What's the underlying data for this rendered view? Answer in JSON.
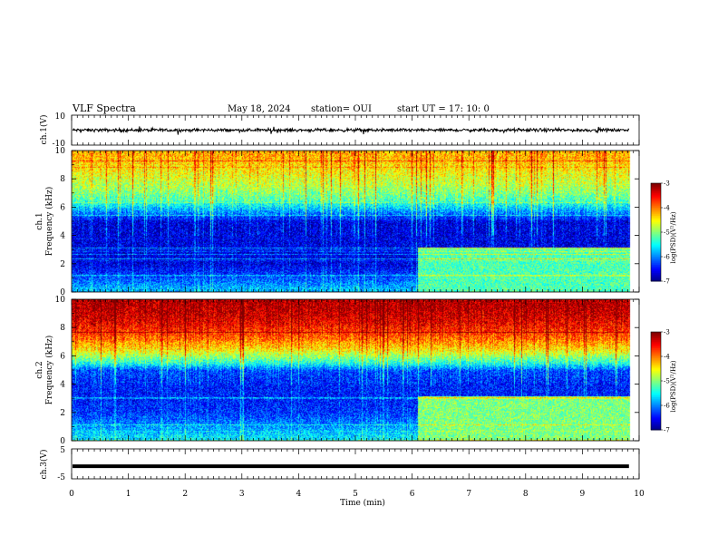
{
  "header": {
    "title": "VLF Spectra",
    "date": "May 18, 2024",
    "station": "station= OUI",
    "start": "start  UT  =   17: 10: 0"
  },
  "panels": {
    "ch1v": {
      "ylabel": "ch.1(V)",
      "yticks": [
        "10",
        "-10"
      ]
    },
    "spec1": {
      "ylabel": "ch.1\nFrequency (kHz)",
      "yticks": [
        "0",
        "2",
        "4",
        "6",
        "8",
        "10"
      ]
    },
    "spec2": {
      "ylabel": "ch.2\nFrequency (kHz)",
      "yticks": [
        "0",
        "2",
        "4",
        "6",
        "8",
        "10"
      ]
    },
    "ch3v": {
      "ylabel": "ch.3(V)",
      "yticks": [
        "5",
        "-5"
      ]
    }
  },
  "xaxis": {
    "label": "Time (min)",
    "ticks": [
      "0",
      "1",
      "2",
      "3",
      "4",
      "5",
      "6",
      "7",
      "8",
      "9",
      "10"
    ]
  },
  "colorbar": {
    "label": "log(PSD)(V²/Hz)",
    "ticks": [
      "-3",
      "-4",
      "-5",
      "-6",
      "-7"
    ]
  },
  "chart_data": [
    {
      "type": "line",
      "name": "ch.1 waveform",
      "xlabel": "Time (min)",
      "ylabel": "ch.1(V)",
      "xlim": [
        0,
        10
      ],
      "ylim": [
        -10,
        10
      ],
      "data_end_min": 9.83,
      "approx_mean": 0,
      "approx_amplitude": 1.5
    },
    {
      "type": "heatmap",
      "name": "ch.1 spectrogram",
      "xlabel": "Time (min)",
      "ylabel": "Frequency (kHz)",
      "xlim": [
        0,
        10
      ],
      "ylim": [
        0,
        10
      ],
      "zlabel": "log(PSD)(V²/Hz)",
      "zlim": [
        -7,
        -3
      ],
      "background_profile": [
        {
          "f": 0.3,
          "z": -5.8
        },
        {
          "f": 1.0,
          "z": -6.2
        },
        {
          "f": 2.0,
          "z": -6.6
        },
        {
          "f": 3.0,
          "z": -6.6
        },
        {
          "f": 4.0,
          "z": -6.6
        },
        {
          "f": 5.0,
          "z": -6.6
        },
        {
          "f": 5.5,
          "z": -6.1
        },
        {
          "f": 6.5,
          "z": -5.2
        },
        {
          "f": 7.5,
          "z": -4.8
        },
        {
          "f": 8.5,
          "z": -4.5
        },
        {
          "f": 9.5,
          "z": -4.2
        }
      ],
      "regime_change_min": 6.1,
      "after_change_low_freq_z": -5.2
    },
    {
      "type": "heatmap",
      "name": "ch.2 spectrogram",
      "xlabel": "Time (min)",
      "ylabel": "Frequency (kHz)",
      "xlim": [
        0,
        10
      ],
      "ylim": [
        0,
        10
      ],
      "zlabel": "log(PSD)(V²/Hz)",
      "zlim": [
        -7,
        -3
      ],
      "background_profile": [
        {
          "f": 0.3,
          "z": -5.6
        },
        {
          "f": 1.0,
          "z": -5.9
        },
        {
          "f": 2.0,
          "z": -6.3
        },
        {
          "f": 3.0,
          "z": -6.4
        },
        {
          "f": 4.0,
          "z": -6.4
        },
        {
          "f": 5.0,
          "z": -6.2
        },
        {
          "f": 5.5,
          "z": -5.4
        },
        {
          "f": 6.5,
          "z": -4.4
        },
        {
          "f": 7.5,
          "z": -3.8
        },
        {
          "f": 8.5,
          "z": -3.4
        },
        {
          "f": 9.5,
          "z": -3.2
        }
      ],
      "regime_change_min": 6.1,
      "after_change_low_freq_z": -5.0
    },
    {
      "type": "line",
      "name": "ch.3 waveform",
      "xlabel": "Time (min)",
      "ylabel": "ch.3(V)",
      "xlim": [
        0,
        10
      ],
      "ylim": [
        -5,
        5
      ],
      "data_end_min": 9.83,
      "approx_mean": -0.8
    }
  ]
}
